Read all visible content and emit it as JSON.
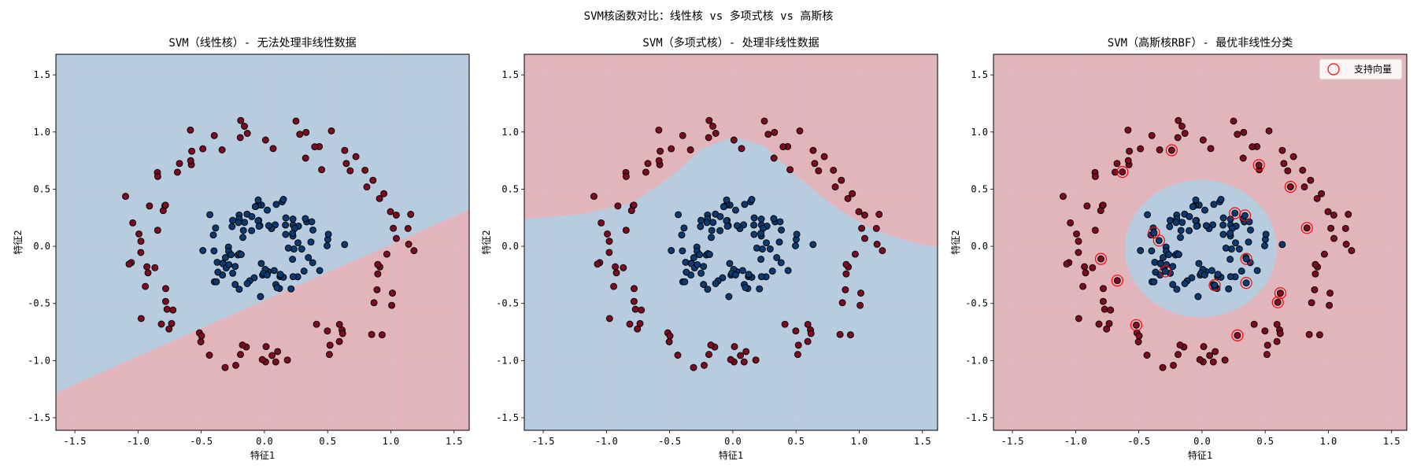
{
  "suptitle": "SVM核函数对比：线性核 vs 多项式核 vs 高斯核",
  "colors": {
    "class0_region": "#b8cce0",
    "class1_region": "#e2b5bd",
    "class0_point": "#0b3a70",
    "class1_point": "#7a0b21",
    "support_vector_edge": "#ff0000",
    "grid": "#c8c8c8"
  },
  "chart_data": [
    {
      "type": "scatter",
      "kernel": "linear",
      "title": "SVM（线性核）- 无法处理非线性数据",
      "xlabel": "特征1",
      "ylabel": "特征2",
      "xlim": [
        -1.65,
        1.62
      ],
      "ylim": [
        -1.61,
        1.68
      ],
      "xticks": [
        "-1.5",
        "-1.0",
        "-0.5",
        "0.0",
        "0.5",
        "1.0",
        "1.5"
      ],
      "yticks": [
        "-1.5",
        "-1.0",
        "-0.5",
        "0.0",
        "0.5",
        "1.0",
        "1.5"
      ],
      "grid": true,
      "boundary_line": [
        [
          -1.65,
          -1.28
        ],
        [
          1.62,
          0.32
        ]
      ],
      "regions": {
        "above": "class0",
        "below": "class1"
      },
      "series": [
        {
          "class": "outer",
          "n": 100,
          "radius": 1.0,
          "noise": 0.1
        },
        {
          "class": "inner",
          "n": 100,
          "radius": 0.3,
          "noise": 0.1
        }
      ]
    },
    {
      "type": "scatter",
      "kernel": "poly",
      "title": "SVM（多项式核）- 处理非线性数据",
      "xlabel": "特征1",
      "ylabel": "特征2",
      "xlim": [
        -1.65,
        1.62
      ],
      "ylim": [
        -1.61,
        1.68
      ],
      "xticks": [
        "-1.5",
        "-1.0",
        "-0.5",
        "0.0",
        "0.5",
        "1.0",
        "1.5"
      ],
      "yticks": [
        "-1.5",
        "-1.0",
        "-0.5",
        "0.0",
        "0.5",
        "1.0",
        "1.5"
      ],
      "grid": true,
      "boundary_curve": [
        [
          -1.65,
          0.24
        ],
        [
          -1.2,
          0.28
        ],
        [
          -0.8,
          0.38
        ],
        [
          -0.5,
          0.6
        ],
        [
          -0.25,
          0.85
        ],
        [
          0.0,
          0.96
        ],
        [
          0.25,
          0.88
        ],
        [
          0.5,
          0.62
        ],
        [
          0.8,
          0.35
        ],
        [
          1.1,
          0.15
        ],
        [
          1.4,
          0.04
        ],
        [
          1.62,
          -0.01
        ]
      ],
      "regions": {
        "above": "class1",
        "below": "class0"
      },
      "series": [
        {
          "class": "outer",
          "n": 100,
          "radius": 1.0,
          "noise": 0.1
        },
        {
          "class": "inner",
          "n": 100,
          "radius": 0.3,
          "noise": 0.1
        }
      ]
    },
    {
      "type": "scatter",
      "kernel": "rbf",
      "title": "SVM（高斯核RBF）- 最优非线性分类",
      "xlabel": "特征1",
      "ylabel": "特征2",
      "xlim": [
        -1.65,
        1.62
      ],
      "ylim": [
        -1.61,
        1.68
      ],
      "xticks": [
        "-1.5",
        "-1.0",
        "-0.5",
        "0.0",
        "0.5",
        "1.0",
        "1.5"
      ],
      "yticks": [
        "-1.5",
        "-1.0",
        "-0.5",
        "0.0",
        "0.5",
        "1.0",
        "1.5"
      ],
      "grid": true,
      "boundary_circle": {
        "cx": -0.01,
        "cy": -0.02,
        "r": 0.6
      },
      "regions": {
        "inside": "class0",
        "outside": "class1"
      },
      "legend": {
        "label": "支持向量",
        "position": "top-right"
      },
      "support_vectors": [
        [
          -0.63,
          0.65
        ],
        [
          -0.24,
          0.84
        ],
        [
          0.45,
          0.71
        ],
        [
          0.7,
          0.52
        ],
        [
          0.83,
          0.16
        ],
        [
          -0.8,
          -0.11
        ],
        [
          -0.67,
          -0.3
        ],
        [
          -0.52,
          -0.69
        ],
        [
          0.6,
          -0.49
        ],
        [
          0.62,
          -0.41
        ],
        [
          0.28,
          -0.78
        ],
        [
          -0.38,
          0.12
        ],
        [
          -0.34,
          0.05
        ],
        [
          -0.29,
          -0.22
        ],
        [
          0.1,
          -0.34
        ],
        [
          0.26,
          0.29
        ],
        [
          0.34,
          0.27
        ],
        [
          0.35,
          -0.11
        ],
        [
          0.35,
          -0.32
        ]
      ],
      "series": [
        {
          "class": "outer",
          "n": 100,
          "radius": 1.0,
          "noise": 0.1
        },
        {
          "class": "inner",
          "n": 100,
          "radius": 0.3,
          "noise": 0.1
        }
      ]
    }
  ]
}
